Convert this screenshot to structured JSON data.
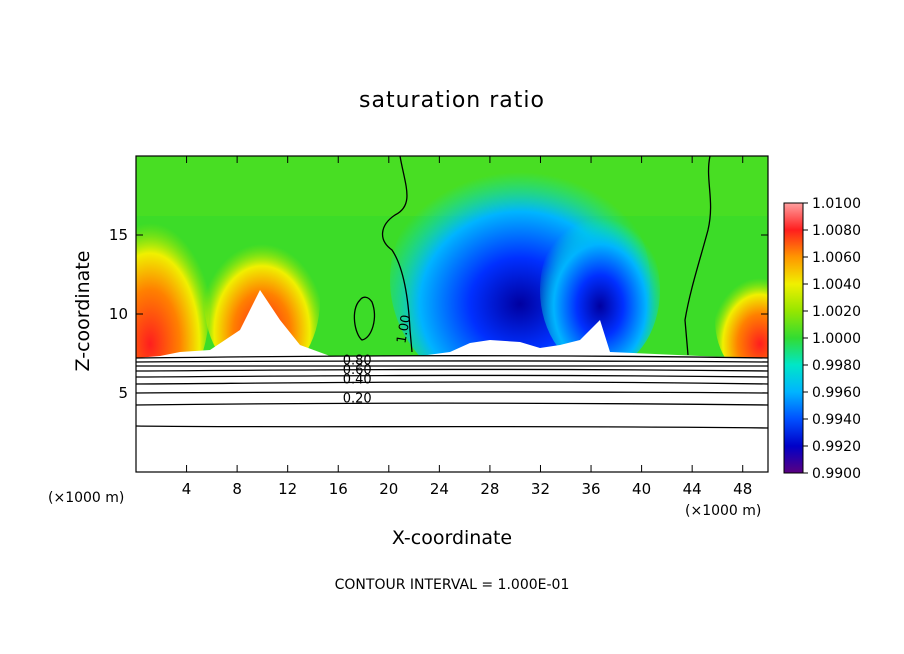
{
  "chart_data": {
    "type": "heatmap",
    "title": "saturation ratio",
    "xlabel": "X-coordinate",
    "ylabel": "Z-coordinate",
    "x_unit": "(×1000 m)",
    "y_unit": "(×1000 m)",
    "xlim": [
      0,
      50
    ],
    "ylim": [
      0,
      20
    ],
    "xticks": [
      4,
      8,
      12,
      16,
      20,
      24,
      28,
      32,
      36,
      40,
      44,
      48
    ],
    "yticks": [
      5,
      10,
      15
    ],
    "colorbar": {
      "min": 0.99,
      "max": 1.01,
      "ticks": [
        "1.0100",
        "1.0080",
        "1.0060",
        "1.0040",
        "1.0020",
        "1.0000",
        "0.9980",
        "0.9960",
        "0.9940",
        "0.9920",
        "0.9900"
      ]
    },
    "contour_labels": [
      {
        "text": "1.00",
        "x": 21.5,
        "y": 9.0
      },
      {
        "text": "0.80",
        "x": 17.5,
        "y": 6.8
      },
      {
        "text": "0.60",
        "x": 17.5,
        "y": 6.2
      },
      {
        "text": "0.40",
        "x": 17.5,
        "y": 5.6
      },
      {
        "text": "0.20",
        "x": 17.5,
        "y": 4.4
      }
    ],
    "contour_interval_text": "CONTOUR INTERVAL = 1.000E-01"
  }
}
